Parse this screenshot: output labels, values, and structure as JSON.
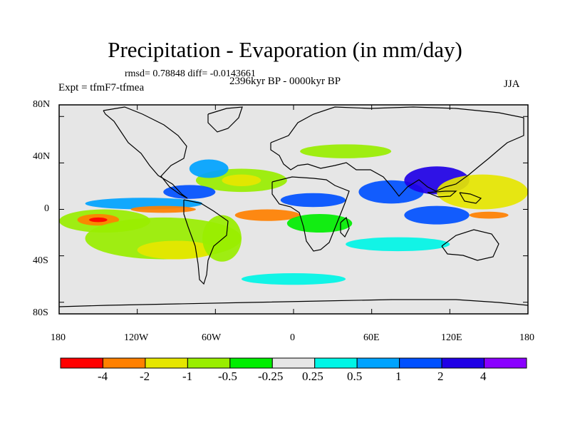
{
  "title": "Precipitation - Evaporation (in mm/day)",
  "stats": "rmsd= 0.78848 diff= -0.0143661",
  "period": "2396kyr BP - 0000kyr BP",
  "experiment": "Expt = tfmF7-tfmea",
  "season": "JJA",
  "lat_ticks": [
    "80N",
    "40N",
    "0",
    "40S",
    "80S"
  ],
  "lon_ticks": [
    "180",
    "120W",
    "60W",
    "0",
    "60E",
    "120E",
    "180"
  ],
  "colorbar": {
    "colors": [
      "#ff0000",
      "#ff8000",
      "#e6e600",
      "#99ee00",
      "#00ee00",
      "#e6e6e6",
      "#00f5e6",
      "#00a3ff",
      "#0050ff",
      "#2000e6",
      "#8a00ff"
    ],
    "labels": [
      "-4",
      "-2",
      "-1",
      "-0.5",
      "-0.25",
      "0.25",
      "0.5",
      "1",
      "2",
      "4"
    ]
  },
  "regions": [
    {
      "lon": -145,
      "lat": -10,
      "rx": 35,
      "ry": 10,
      "color": "#99ee00"
    },
    {
      "lon": -150,
      "lat": -9,
      "rx": 16,
      "ry": 5,
      "color": "#ff8000"
    },
    {
      "lon": -150,
      "lat": -9,
      "rx": 7,
      "ry": 2,
      "color": "#ff0000"
    },
    {
      "lon": -115,
      "lat": 5,
      "rx": 45,
      "ry": 5,
      "color": "#00a3ff"
    },
    {
      "lon": -100,
      "lat": 0,
      "rx": 25,
      "ry": 3,
      "color": "#ff8000"
    },
    {
      "lon": -100,
      "lat": -25,
      "rx": 60,
      "ry": 18,
      "color": "#99ee00"
    },
    {
      "lon": -90,
      "lat": -35,
      "rx": 30,
      "ry": 8,
      "color": "#e6e600"
    },
    {
      "lon": -55,
      "lat": -25,
      "rx": 15,
      "ry": 20,
      "color": "#99ee00"
    },
    {
      "lon": -40,
      "lat": 25,
      "rx": 35,
      "ry": 10,
      "color": "#99ee00"
    },
    {
      "lon": -40,
      "lat": 25,
      "rx": 15,
      "ry": 5,
      "color": "#e6e600"
    },
    {
      "lon": -65,
      "lat": 35,
      "rx": 15,
      "ry": 8,
      "color": "#00a3ff"
    },
    {
      "lon": -80,
      "lat": 15,
      "rx": 20,
      "ry": 6,
      "color": "#0050ff"
    },
    {
      "lon": -20,
      "lat": -5,
      "rx": 25,
      "ry": 5,
      "color": "#ff8000"
    },
    {
      "lon": 15,
      "lat": 8,
      "rx": 25,
      "ry": 6,
      "color": "#0050ff"
    },
    {
      "lon": 20,
      "lat": -12,
      "rx": 25,
      "ry": 8,
      "color": "#00ee00"
    },
    {
      "lon": 40,
      "lat": 50,
      "rx": 35,
      "ry": 6,
      "color": "#99ee00"
    },
    {
      "lon": 75,
      "lat": 15,
      "rx": 25,
      "ry": 10,
      "color": "#0050ff"
    },
    {
      "lon": 110,
      "lat": 25,
      "rx": 25,
      "ry": 12,
      "color": "#2000e6"
    },
    {
      "lon": 145,
      "lat": 15,
      "rx": 35,
      "ry": 15,
      "color": "#e6e600"
    },
    {
      "lon": 150,
      "lat": -5,
      "rx": 15,
      "ry": 3,
      "color": "#ff8000"
    },
    {
      "lon": 110,
      "lat": -5,
      "rx": 25,
      "ry": 8,
      "color": "#0050ff"
    },
    {
      "lon": 80,
      "lat": -30,
      "rx": 40,
      "ry": 6,
      "color": "#00f5e6"
    },
    {
      "lon": 0,
      "lat": -60,
      "rx": 40,
      "ry": 5,
      "color": "#00f5e6"
    }
  ]
}
